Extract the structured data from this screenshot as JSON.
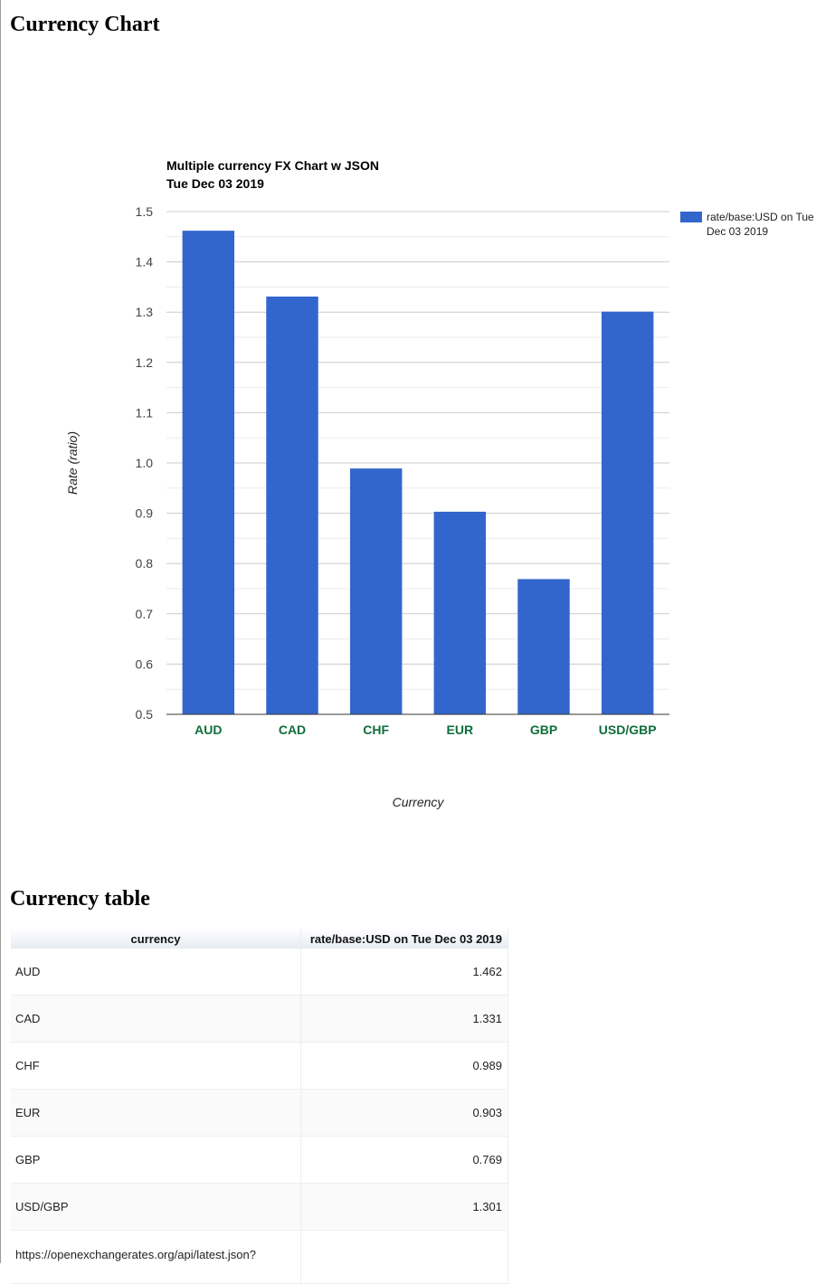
{
  "chart_heading": "Currency Chart",
  "table_heading": "Currency table",
  "chart_data": {
    "type": "bar",
    "title": "Multiple currency FX Chart w JSON",
    "subtitle": "Tue Dec 03 2019",
    "categories": [
      "AUD",
      "CAD",
      "CHF",
      "EUR",
      "GBP",
      "USD/GBP"
    ],
    "series": [
      {
        "name": "rate/base:USD on Tue Dec 03 2019",
        "values": [
          1.462,
          1.331,
          0.989,
          0.903,
          0.769,
          1.301
        ]
      }
    ],
    "xlabel": "Currency",
    "ylabel": "Rate (ratio)",
    "ylim": [
      0.5,
      1.5
    ],
    "yticks": [
      "0.5",
      "0.6",
      "0.7",
      "0.8",
      "0.9",
      "1.0",
      "1.1",
      "1.2",
      "1.3",
      "1.4",
      "1.5"
    ],
    "grid": true,
    "legend": "right",
    "bar_color": "#3366cc",
    "category_label_color": "#0f6e3b"
  },
  "table": {
    "headers": [
      "currency",
      "rate/base:USD on Tue Dec 03 2019"
    ],
    "rows": [
      {
        "currency": "AUD",
        "rate": "1.462"
      },
      {
        "currency": "CAD",
        "rate": "1.331"
      },
      {
        "currency": "CHF",
        "rate": "0.989"
      },
      {
        "currency": "EUR",
        "rate": "0.903"
      },
      {
        "currency": "GBP",
        "rate": "0.769"
      },
      {
        "currency": "USD/GBP",
        "rate": "1.301"
      }
    ],
    "source_url": "https://openexchangerates.org/api/latest.json?"
  }
}
